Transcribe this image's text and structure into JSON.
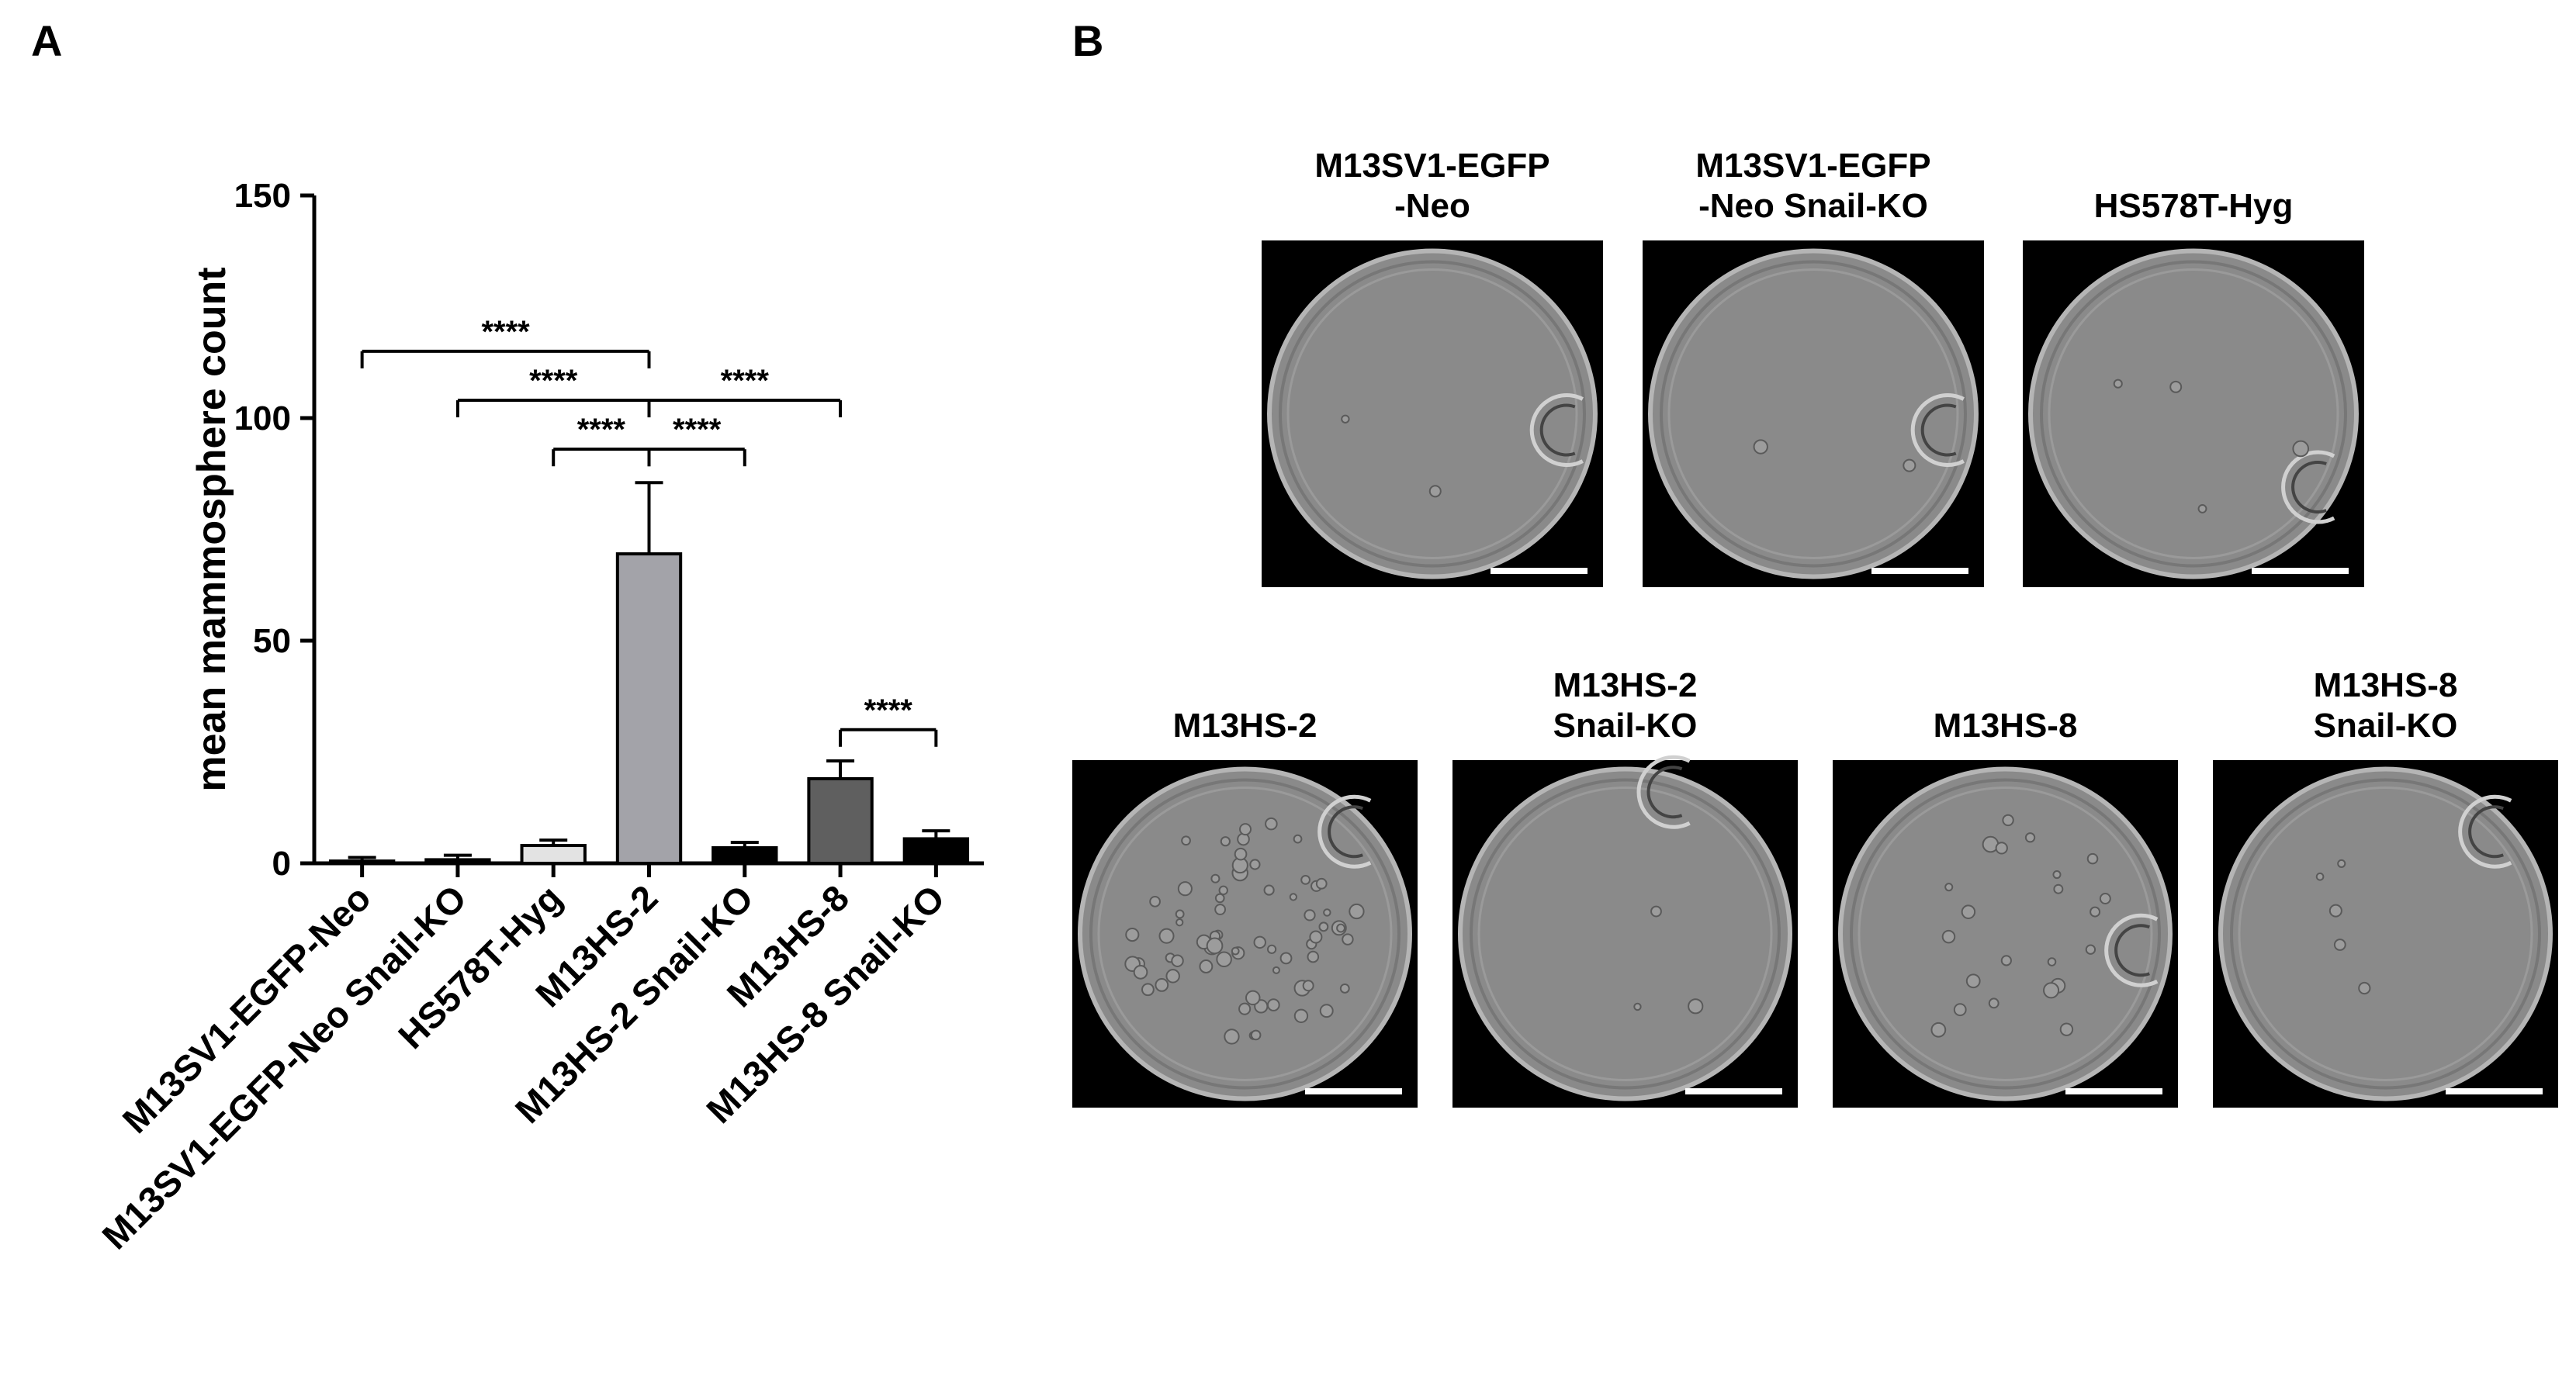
{
  "panels": {
    "a": "A",
    "b": "B"
  },
  "chart_data": {
    "type": "bar",
    "title": "",
    "ylabel": "mean mammosphere count",
    "xlabel": "",
    "ylim": [
      0,
      150
    ],
    "yticks": [
      0,
      50,
      100,
      150
    ],
    "grid": false,
    "categories": [
      "M13SV1-EGFP-Neo",
      "M13SV1-EGFP-Neo Snail-KO",
      "HS578T-Hyg",
      "M13HS-2",
      "M13HS-2 Snail-KO",
      "M13HS-8",
      "M13HS-8 Snail-KO"
    ],
    "values": [
      0.5,
      0.8,
      4,
      69.5,
      3.5,
      19,
      5.5
    ],
    "error": [
      0.8,
      1.0,
      1.2,
      16,
      1.2,
      4,
      1.8
    ],
    "colors": [
      "#ffffff",
      "#ffffff",
      "#e3e3e3",
      "#a3a3a9",
      "#a3a3a9",
      "#5f5f5f",
      "#5f5f5f"
    ],
    "hatched": [
      false,
      true,
      false,
      false,
      true,
      false,
      true
    ],
    "significance": [
      {
        "from": 0,
        "to": 3,
        "label": "****"
      },
      {
        "from": 1,
        "to": 3,
        "label": "****"
      },
      {
        "from": 3,
        "to": 5,
        "label": "****"
      },
      {
        "from": 2,
        "to": 3,
        "label": "****"
      },
      {
        "from": 3,
        "to": 4,
        "label": "****"
      },
      {
        "from": 5,
        "to": 6,
        "label": "****"
      }
    ]
  },
  "micrographs": [
    {
      "lines": [
        "M13SV1-EGFP",
        "-Neo"
      ],
      "spheres": 2,
      "bubble": "right"
    },
    {
      "lines": [
        "M13SV1-EGFP",
        "-Neo Snail-KO"
      ],
      "spheres": 2,
      "bubble": "right"
    },
    {
      "lines": [
        "HS578T-Hyg"
      ],
      "spheres": 4,
      "bubble": "lower-right"
    },
    {
      "lines": [
        "M13HS-2"
      ],
      "spheres": 70,
      "bubble": "top-right"
    },
    {
      "lines": [
        "M13HS-2",
        "Snail-KO"
      ],
      "spheres": 3,
      "bubble": "top"
    },
    {
      "lines": [
        "M13HS-8"
      ],
      "spheres": 22,
      "bubble": "right"
    },
    {
      "lines": [
        "M13HS-8",
        "Snail-KO"
      ],
      "spheres": 5,
      "bubble": "top-right"
    }
  ]
}
